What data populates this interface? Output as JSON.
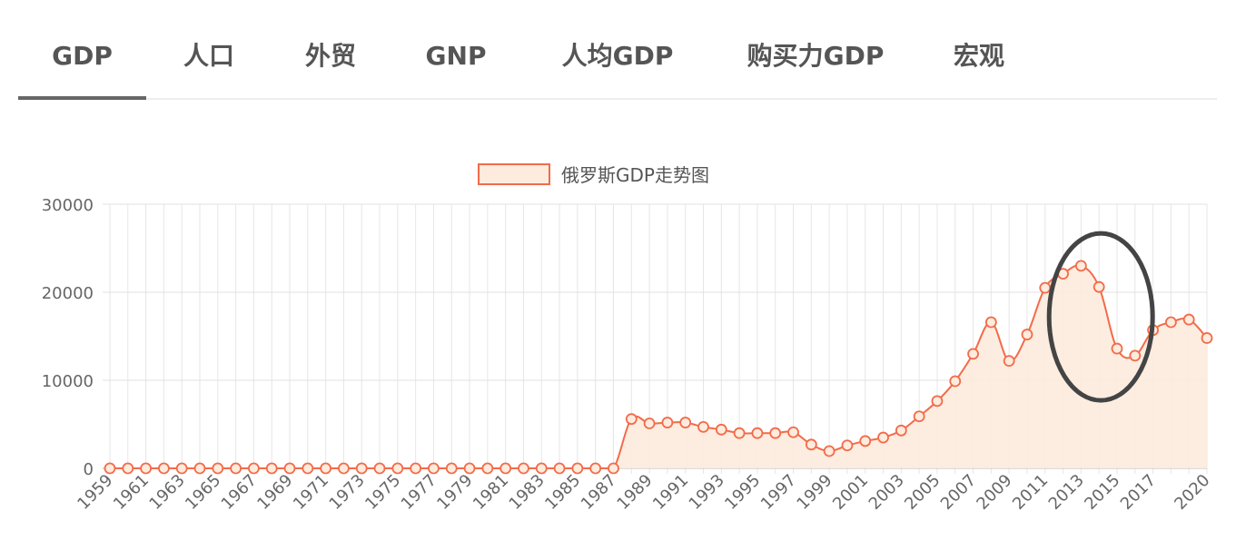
{
  "tabs": [
    {
      "label": "GDP",
      "active": true
    },
    {
      "label": "人口",
      "active": false
    },
    {
      "label": "外贸",
      "active": false
    },
    {
      "label": "GNP",
      "active": false
    },
    {
      "label": "人均GDP",
      "active": false
    },
    {
      "label": "购买力GDP",
      "active": false
    },
    {
      "label": "宏观",
      "active": false
    }
  ],
  "chart_data": {
    "type": "line",
    "filled": true,
    "legend_position": "top-center",
    "grid": true,
    "ylim": [
      0,
      30000
    ],
    "yticks": [
      0,
      10000,
      20000,
      30000
    ],
    "x": [
      "1959",
      "1960",
      "1961",
      "1962",
      "1963",
      "1964",
      "1965",
      "1966",
      "1967",
      "1968",
      "1969",
      "1970",
      "1971",
      "1972",
      "1973",
      "1974",
      "1975",
      "1976",
      "1977",
      "1978",
      "1979",
      "1980",
      "1981",
      "1982",
      "1983",
      "1984",
      "1985",
      "1986",
      "1987",
      "1988",
      "1989",
      "1990",
      "1991",
      "1992",
      "1993",
      "1994",
      "1995",
      "1996",
      "1997",
      "1998",
      "1999",
      "2000",
      "2001",
      "2002",
      "2003",
      "2004",
      "2005",
      "2006",
      "2007",
      "2008",
      "2009",
      "2010",
      "2011",
      "2012",
      "2013",
      "2014",
      "2015",
      "2016",
      "2017",
      "2018",
      "2019",
      "2020"
    ],
    "x_tick_labels": [
      "1959",
      "1961",
      "1963",
      "1965",
      "1967",
      "1969",
      "1971",
      "1973",
      "1975",
      "1977",
      "1979",
      "1981",
      "1983",
      "1985",
      "1987",
      "1989",
      "1991",
      "1993",
      "1995",
      "1997",
      "1999",
      "2001",
      "2003",
      "2005",
      "2007",
      "2009",
      "2011",
      "2013",
      "2015",
      "2017",
      "2020"
    ],
    "series": [
      {
        "name": "俄罗斯GDP走势图",
        "color": "#f26b4a",
        "fill": "#fdebdd",
        "values": [
          0,
          0,
          0,
          0,
          0,
          0,
          0,
          0,
          0,
          0,
          0,
          0,
          0,
          0,
          0,
          0,
          0,
          0,
          0,
          0,
          0,
          0,
          0,
          0,
          0,
          0,
          0,
          0,
          0,
          5600,
          5100,
          5200,
          5200,
          4700,
          4400,
          4000,
          4000,
          4000,
          4100,
          2700,
          1960,
          2600,
          3100,
          3500,
          4300,
          5900,
          7640,
          9900,
          13000,
          16600,
          12200,
          15200,
          20500,
          22100,
          23000,
          20600,
          13600,
          12800,
          15700,
          16600,
          16900,
          14800
        ]
      }
    ],
    "annotations": [
      {
        "type": "ellipse",
        "x_center": "2014",
        "y_center": 17200,
        "color": "#444444"
      }
    ]
  }
}
